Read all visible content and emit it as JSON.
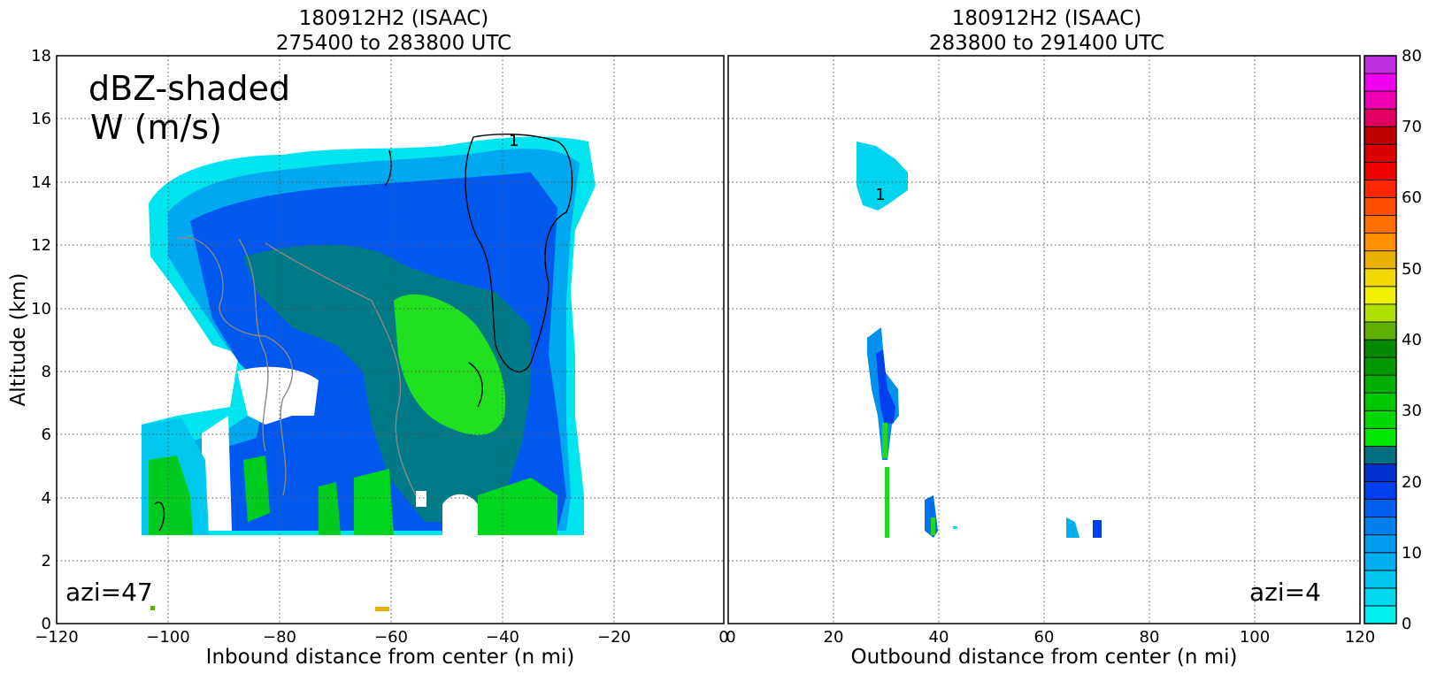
{
  "ylabel": "Altitude (km)",
  "yticks": [
    "0",
    "2",
    "4",
    "6",
    "8",
    "10",
    "12",
    "14",
    "16",
    "18"
  ],
  "annotation_lines": [
    "dBZ-shaded",
    "W (m/s)"
  ],
  "contour_label": "1",
  "panels": [
    {
      "title_line1": "180912H2 (ISAAC)",
      "title_line2": "275400 to 283800 UTC",
      "xlabel": "Inbound distance from center (n mi)",
      "xticks": [
        "−120",
        "−100",
        "−80",
        "−60",
        "−40",
        "−20",
        "0"
      ],
      "azi_label": "azi=47"
    },
    {
      "title_line1": "180912H2 (ISAAC)",
      "title_line2": "283800 to 291400 UTC",
      "xlabel": "Outbound distance from center (n mi)",
      "xticks": [
        "0",
        "20",
        "40",
        "60",
        "80",
        "100",
        "120"
      ],
      "azi_label": "azi=4"
    }
  ],
  "colorbar": {
    "ticks": [
      "0",
      "10",
      "20",
      "30",
      "40",
      "50",
      "60",
      "70",
      "80"
    ],
    "range": [
      0,
      80
    ],
    "step": 2.5,
    "colors": [
      "#00eeee",
      "#00d8ee",
      "#00c4ee",
      "#00b0ee",
      "#009cee",
      "#0080ee",
      "#0060ee",
      "#0040ee",
      "#0030d0",
      "#007080",
      "#00e800",
      "#00d800",
      "#00c800",
      "#00b000",
      "#009800",
      "#008800",
      "#60b000",
      "#b0e000",
      "#f0f000",
      "#f0d800",
      "#e8b000",
      "#ff9000",
      "#ff7000",
      "#ff5000",
      "#ff2800",
      "#ee0000",
      "#d80000",
      "#c00000",
      "#e00060",
      "#ee00b0",
      "#ee00ee",
      "#c030e0",
      "#a050c8",
      "#7a46a0",
      "#3c2846",
      "#000000"
    ]
  },
  "chart_data": [
    {
      "type": "heatmap",
      "title": "180912H2 (ISAAC) 275400 to 283800 UTC",
      "xlabel": "Inbound distance from center (n mi)",
      "ylabel": "Altitude (km)",
      "xlim": [
        -120,
        0
      ],
      "ylim": [
        0,
        18
      ],
      "grid": true,
      "field": "reflectivity (dBZ), shaded; vertical velocity W (m/s) contoured",
      "approx_echo_regions": [
        {
          "x": [
            -105,
            -23
          ],
          "y": [
            8,
            15.3
          ],
          "dbz": [
            5,
            25
          ]
        },
        {
          "x": [
            -55,
            -27
          ],
          "y": [
            2.7,
            10
          ],
          "dbz": [
            10,
            25
          ]
        },
        {
          "x": [
            -105,
            -93
          ],
          "y": [
            2.7,
            6
          ],
          "dbz": [
            5,
            22
          ]
        },
        {
          "x": [
            -90,
            -66
          ],
          "y": [
            2.7,
            7
          ],
          "dbz": [
            5,
            22
          ]
        },
        {
          "x": [
            -66,
            -50
          ],
          "y": [
            2.7,
            6
          ],
          "dbz": [
            8,
            22
          ]
        }
      ]
    },
    {
      "type": "heatmap",
      "title": "180912H2 (ISAAC) 283800 to 291400 UTC",
      "xlabel": "Outbound distance from center (n mi)",
      "ylabel": "Altitude (km)",
      "xlim": [
        0,
        120
      ],
      "ylim": [
        0,
        18
      ],
      "grid": true,
      "approx_echo_regions": [
        {
          "x": [
            24,
            34
          ],
          "y": [
            13,
            15.3
          ],
          "dbz": [
            2,
            5
          ]
        },
        {
          "x": [
            26,
            32
          ],
          "y": [
            2.7,
            9.4
          ],
          "dbz": [
            5,
            20
          ]
        },
        {
          "x": [
            37,
            40
          ],
          "y": [
            2.7,
            4.2
          ],
          "dbz": [
            5,
            20
          ]
        },
        {
          "x": [
            64,
            71
          ],
          "y": [
            2.7,
            3.5
          ],
          "dbz": [
            5,
            15
          ]
        }
      ]
    }
  ]
}
